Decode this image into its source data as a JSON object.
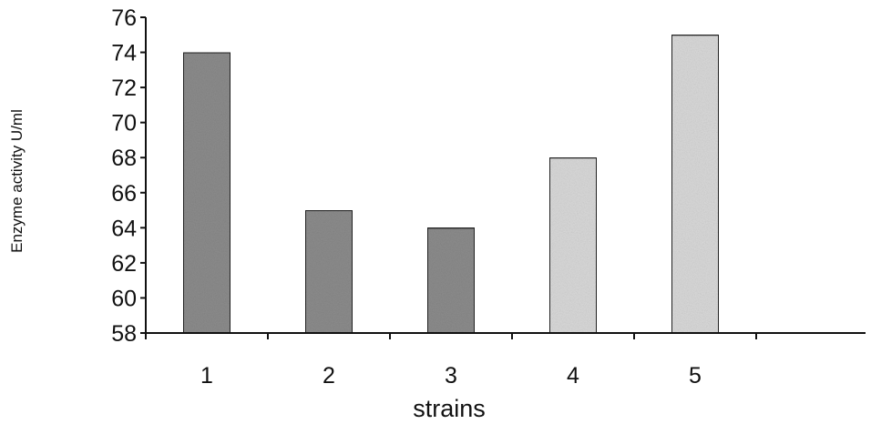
{
  "chart_data": {
    "type": "bar",
    "title": "",
    "xlabel": "strains",
    "ylabel": "Enzyme activity U/ml",
    "categories": [
      "1",
      "2",
      "3",
      "4",
      "5"
    ],
    "values": [
      74,
      65,
      64,
      68,
      75
    ],
    "ylim": [
      58,
      76
    ],
    "yticks": [
      58,
      60,
      62,
      64,
      66,
      68,
      70,
      72,
      74,
      76
    ],
    "bar_colors": [
      "#8c8c8c",
      "#8c8c8c",
      "#8c8c8c",
      "#d9d9d9",
      "#d9d9d9"
    ],
    "grid": false,
    "legend": "none"
  }
}
